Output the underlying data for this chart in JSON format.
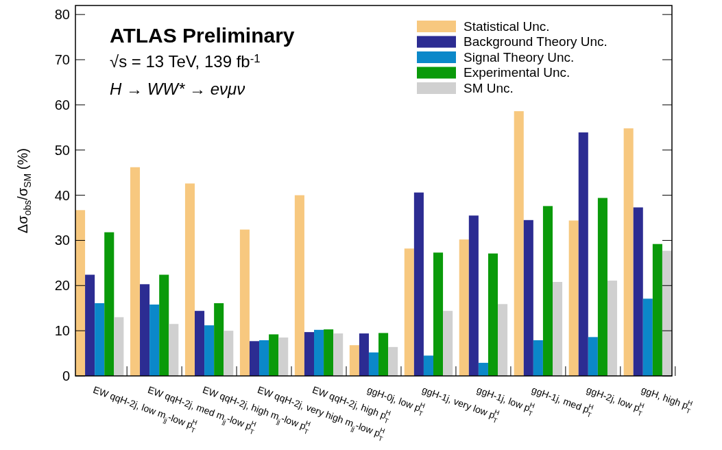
{
  "chart_data": {
    "type": "bar",
    "ylabel": "Δσ$_{obs}$/σ$_{SM}$ (%)",
    "categories": [
      "EW qqH-2j, low m$_{jj}$-low p$_{T}$$^{H}$",
      "EW qqH-2j, med m$_{jj}$-low p$_{T}$$^{H}$",
      "EW qqH-2j, high m$_{jj}$-low p$_{T}$$^{H}$",
      "EW qqH-2j, very high m$_{jj}$-low p$_{T}$$^{H}$",
      "EW qqH-2j, high p$_{T}$$^{H}$",
      "ggH-0j, low p$_{T}$$^{H}$",
      "ggH-1j, very low p$_{T}$$^{H}$",
      "ggH-1j, low p$_{T}$$^{H}$",
      "ggH-1j, med p$_{T}$$^{H}$",
      "ggH-2j, low p$_{T}$$^{H}$",
      "ggH, high p$_{T}$$^{H}$"
    ],
    "series": [
      {
        "name": "Statistical Unc.",
        "color": "#f7c87f",
        "values": [
          36.7,
          46.2,
          42.6,
          32.4,
          40.0,
          6.8,
          28.2,
          30.2,
          58.6,
          34.4,
          54.8
        ]
      },
      {
        "name": "Background Theory Unc.",
        "color": "#2c2c92",
        "values": [
          22.4,
          20.3,
          14.4,
          7.7,
          9.7,
          9.4,
          40.6,
          35.5,
          34.5,
          53.9,
          37.3
        ]
      },
      {
        "name": "Signal Theory Unc.",
        "color": "#0b88c9",
        "values": [
          16.1,
          15.8,
          11.2,
          7.9,
          10.2,
          5.2,
          4.5,
          2.9,
          7.9,
          8.6,
          17.1
        ]
      },
      {
        "name": "Experimental Unc.",
        "color": "#0a9a0a",
        "values": [
          31.8,
          22.4,
          16.1,
          9.2,
          10.3,
          9.5,
          27.3,
          27.1,
          37.6,
          39.4,
          29.2
        ]
      },
      {
        "name": "SM Unc.",
        "color": "#d0d0d0",
        "values": [
          13.0,
          11.5,
          10.0,
          8.5,
          9.4,
          6.4,
          14.4,
          15.9,
          20.8,
          21.1,
          27.7
        ]
      }
    ],
    "ylim": [
      0,
      82
    ],
    "yticks": [
      0,
      10,
      20,
      30,
      40,
      50,
      60,
      70,
      80
    ],
    "legend": "top right",
    "annotations": [
      "ATLAS Preliminary",
      "√s = 13 TeV, 139 fb$^{-1}$",
      "H → WW* → eνμν"
    ]
  }
}
